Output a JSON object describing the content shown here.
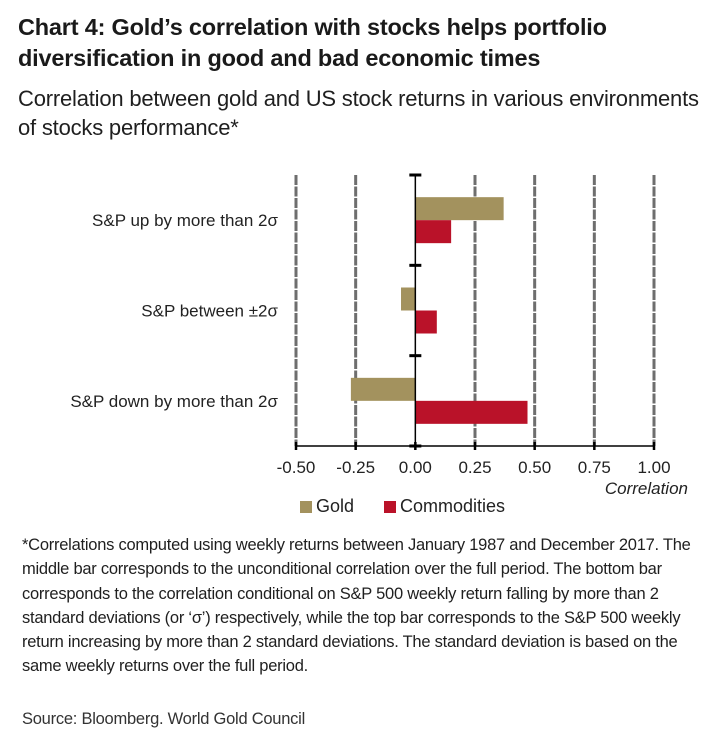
{
  "header": {
    "title": "Chart 4: Gold’s correlation with stocks helps portfolio diversification in good and bad economic times",
    "subtitle": "Correlation between gold and US stock returns in various environments of stocks performance*"
  },
  "colors": {
    "gold": "#A3925E",
    "commodities": "#BA1229",
    "gridline": "#6E6E6E",
    "axis": "#000000"
  },
  "chart_data": {
    "type": "bar",
    "orientation": "horizontal",
    "title": "Chart 4: Gold’s correlation with stocks helps portfolio diversification in good and bad economic times",
    "subtitle": "Correlation between gold and US stock returns in various environments of stocks performance*",
    "categories": [
      "S&P up by more than 2σ",
      "S&P between ±2σ",
      "S&P down by more than 2σ"
    ],
    "series": [
      {
        "name": "Gold",
        "color": "#A3925E",
        "values": [
          0.37,
          -0.06,
          -0.27
        ]
      },
      {
        "name": "Commodities",
        "color": "#BA1229",
        "values": [
          0.15,
          0.09,
          0.47
        ]
      }
    ],
    "xlabel": "Correlation",
    "ylabel": "",
    "xlim": [
      -0.5,
      1.0
    ],
    "xticks": [
      -0.5,
      -0.25,
      0.0,
      0.25,
      0.5,
      0.75,
      1.0
    ],
    "xtick_labels": [
      "-0.50",
      "-0.25",
      "0.00",
      "0.25",
      "0.50",
      "0.75",
      "1.00"
    ],
    "grid": "vertical dashed",
    "legend": {
      "placement": "bottom",
      "entries": [
        "Gold",
        "Commodities"
      ]
    }
  },
  "legend": {
    "gold_label": "Gold",
    "commodities_label": "Commodities"
  },
  "footnote": "*Correlations computed using weekly returns between January 1987 and December 2017. The middle bar corresponds to the unconditional correlation over the full period. The bottom bar corresponds to the correlation conditional on S&P 500 weekly return falling by more than 2 standard deviations (or ‘σ’) respectively, while the top bar corresponds to the S&P 500 weekly return increasing by more than 2 standard deviations. The standard deviation is based on the same weekly returns over the full period.",
  "source": "Source: Bloomberg. World Gold Council"
}
